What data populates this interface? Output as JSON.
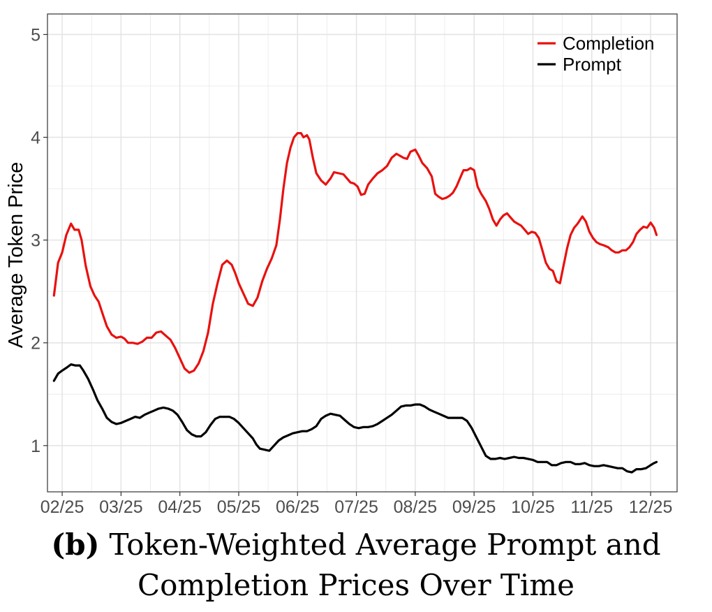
{
  "chart_data": {
    "type": "line",
    "title": "",
    "xlabel": "",
    "ylabel": "Average Token Price",
    "ylim": [
      0.55,
      5.2
    ],
    "xlim": [
      -0.25,
      10.45
    ],
    "yticks": [
      1,
      2,
      3,
      4,
      5
    ],
    "xticks": [
      {
        "label": "02/25",
        "pos": 0
      },
      {
        "label": "03/25",
        "pos": 1
      },
      {
        "label": "04/25",
        "pos": 2
      },
      {
        "label": "05/25",
        "pos": 3
      },
      {
        "label": "06/25",
        "pos": 4
      },
      {
        "label": "07/25",
        "pos": 5
      },
      {
        "label": "08/25",
        "pos": 6
      },
      {
        "label": "09/25",
        "pos": 7
      },
      {
        "label": "10/25",
        "pos": 8
      },
      {
        "label": "11/25",
        "pos": 9
      },
      {
        "label": "12/25",
        "pos": 10
      }
    ],
    "grid": true,
    "legend_position": "top-right",
    "series": [
      {
        "name": "Completion",
        "color": "#e8110f",
        "points": [
          [
            -0.14,
            2.46
          ],
          [
            -0.07,
            2.78
          ],
          [
            0.0,
            2.88
          ],
          [
            0.07,
            3.05
          ],
          [
            0.15,
            3.16
          ],
          [
            0.21,
            3.1
          ],
          [
            0.28,
            3.1
          ],
          [
            0.33,
            3.0
          ],
          [
            0.4,
            2.75
          ],
          [
            0.48,
            2.55
          ],
          [
            0.55,
            2.46
          ],
          [
            0.62,
            2.4
          ],
          [
            0.7,
            2.26
          ],
          [
            0.76,
            2.16
          ],
          [
            0.84,
            2.08
          ],
          [
            0.92,
            2.05
          ],
          [
            1.0,
            2.06
          ],
          [
            1.06,
            2.04
          ],
          [
            1.12,
            2.0
          ],
          [
            1.2,
            2.0
          ],
          [
            1.28,
            1.99
          ],
          [
            1.36,
            2.01
          ],
          [
            1.44,
            2.05
          ],
          [
            1.52,
            2.05
          ],
          [
            1.6,
            2.1
          ],
          [
            1.68,
            2.11
          ],
          [
            1.76,
            2.07
          ],
          [
            1.84,
            2.03
          ],
          [
            1.92,
            1.95
          ],
          [
            2.0,
            1.85
          ],
          [
            2.08,
            1.75
          ],
          [
            2.16,
            1.71
          ],
          [
            2.24,
            1.73
          ],
          [
            2.32,
            1.8
          ],
          [
            2.4,
            1.92
          ],
          [
            2.48,
            2.1
          ],
          [
            2.56,
            2.38
          ],
          [
            2.64,
            2.58
          ],
          [
            2.72,
            2.76
          ],
          [
            2.8,
            2.8
          ],
          [
            2.88,
            2.76
          ],
          [
            2.94,
            2.68
          ],
          [
            3.0,
            2.58
          ],
          [
            3.08,
            2.48
          ],
          [
            3.16,
            2.38
          ],
          [
            3.24,
            2.36
          ],
          [
            3.32,
            2.44
          ],
          [
            3.4,
            2.6
          ],
          [
            3.48,
            2.72
          ],
          [
            3.56,
            2.82
          ],
          [
            3.64,
            2.95
          ],
          [
            3.7,
            3.2
          ],
          [
            3.76,
            3.5
          ],
          [
            3.82,
            3.75
          ],
          [
            3.88,
            3.9
          ],
          [
            3.94,
            4.0
          ],
          [
            4.0,
            4.04
          ],
          [
            4.06,
            4.04
          ],
          [
            4.1,
            4.0
          ],
          [
            4.16,
            4.02
          ],
          [
            4.2,
            3.98
          ],
          [
            4.26,
            3.8
          ],
          [
            4.32,
            3.65
          ],
          [
            4.4,
            3.58
          ],
          [
            4.48,
            3.54
          ],
          [
            4.56,
            3.6
          ],
          [
            4.62,
            3.66
          ],
          [
            4.7,
            3.65
          ],
          [
            4.78,
            3.64
          ],
          [
            4.84,
            3.6
          ],
          [
            4.9,
            3.56
          ],
          [
            4.96,
            3.55
          ],
          [
            5.02,
            3.52
          ],
          [
            5.08,
            3.44
          ],
          [
            5.14,
            3.45
          ],
          [
            5.2,
            3.54
          ],
          [
            5.28,
            3.6
          ],
          [
            5.36,
            3.65
          ],
          [
            5.44,
            3.68
          ],
          [
            5.52,
            3.72
          ],
          [
            5.6,
            3.8
          ],
          [
            5.68,
            3.84
          ],
          [
            5.74,
            3.82
          ],
          [
            5.8,
            3.8
          ],
          [
            5.86,
            3.79
          ],
          [
            5.92,
            3.86
          ],
          [
            6.0,
            3.88
          ],
          [
            6.06,
            3.82
          ],
          [
            6.12,
            3.75
          ],
          [
            6.2,
            3.7
          ],
          [
            6.28,
            3.62
          ],
          [
            6.34,
            3.45
          ],
          [
            6.4,
            3.42
          ],
          [
            6.46,
            3.4
          ],
          [
            6.52,
            3.41
          ],
          [
            6.58,
            3.43
          ],
          [
            6.64,
            3.46
          ],
          [
            6.7,
            3.52
          ],
          [
            6.76,
            3.6
          ],
          [
            6.82,
            3.68
          ],
          [
            6.88,
            3.68
          ],
          [
            6.94,
            3.7
          ],
          [
            7.0,
            3.68
          ],
          [
            7.06,
            3.52
          ],
          [
            7.12,
            3.45
          ],
          [
            7.2,
            3.38
          ],
          [
            7.26,
            3.3
          ],
          [
            7.32,
            3.2
          ],
          [
            7.38,
            3.14
          ],
          [
            7.44,
            3.2
          ],
          [
            7.5,
            3.24
          ],
          [
            7.56,
            3.26
          ],
          [
            7.62,
            3.22
          ],
          [
            7.68,
            3.18
          ],
          [
            7.74,
            3.16
          ],
          [
            7.8,
            3.14
          ],
          [
            7.86,
            3.1
          ],
          [
            7.92,
            3.06
          ],
          [
            7.98,
            3.08
          ],
          [
            8.04,
            3.07
          ],
          [
            8.1,
            3.02
          ],
          [
            8.16,
            2.9
          ],
          [
            8.22,
            2.78
          ],
          [
            8.28,
            2.72
          ],
          [
            8.34,
            2.7
          ],
          [
            8.4,
            2.6
          ],
          [
            8.46,
            2.58
          ],
          [
            8.52,
            2.75
          ],
          [
            8.58,
            2.92
          ],
          [
            8.64,
            3.05
          ],
          [
            8.7,
            3.12
          ],
          [
            8.76,
            3.16
          ],
          [
            8.84,
            3.23
          ],
          [
            8.9,
            3.18
          ],
          [
            8.96,
            3.08
          ],
          [
            9.02,
            3.02
          ],
          [
            9.08,
            2.98
          ],
          [
            9.14,
            2.96
          ],
          [
            9.2,
            2.95
          ],
          [
            9.28,
            2.93
          ],
          [
            9.34,
            2.9
          ],
          [
            9.4,
            2.88
          ],
          [
            9.46,
            2.88
          ],
          [
            9.52,
            2.9
          ],
          [
            9.58,
            2.9
          ],
          [
            9.64,
            2.93
          ],
          [
            9.7,
            2.98
          ],
          [
            9.76,
            3.06
          ],
          [
            9.82,
            3.1
          ],
          [
            9.88,
            3.13
          ],
          [
            9.94,
            3.12
          ],
          [
            10.0,
            3.17
          ],
          [
            10.06,
            3.12
          ],
          [
            10.1,
            3.05
          ]
        ]
      },
      {
        "name": "Prompt",
        "color": "#000000",
        "points": [
          [
            -0.14,
            1.63
          ],
          [
            -0.07,
            1.7
          ],
          [
            0.0,
            1.73
          ],
          [
            0.08,
            1.76
          ],
          [
            0.15,
            1.79
          ],
          [
            0.22,
            1.78
          ],
          [
            0.3,
            1.78
          ],
          [
            0.36,
            1.73
          ],
          [
            0.44,
            1.65
          ],
          [
            0.52,
            1.55
          ],
          [
            0.6,
            1.44
          ],
          [
            0.68,
            1.36
          ],
          [
            0.76,
            1.27
          ],
          [
            0.84,
            1.23
          ],
          [
            0.92,
            1.21
          ],
          [
            1.0,
            1.22
          ],
          [
            1.08,
            1.24
          ],
          [
            1.16,
            1.26
          ],
          [
            1.24,
            1.28
          ],
          [
            1.32,
            1.27
          ],
          [
            1.4,
            1.3
          ],
          [
            1.48,
            1.32
          ],
          [
            1.56,
            1.34
          ],
          [
            1.64,
            1.36
          ],
          [
            1.72,
            1.37
          ],
          [
            1.8,
            1.36
          ],
          [
            1.88,
            1.34
          ],
          [
            1.96,
            1.3
          ],
          [
            2.04,
            1.23
          ],
          [
            2.12,
            1.15
          ],
          [
            2.2,
            1.11
          ],
          [
            2.28,
            1.09
          ],
          [
            2.36,
            1.09
          ],
          [
            2.44,
            1.13
          ],
          [
            2.52,
            1.2
          ],
          [
            2.6,
            1.26
          ],
          [
            2.68,
            1.28
          ],
          [
            2.76,
            1.28
          ],
          [
            2.84,
            1.28
          ],
          [
            2.92,
            1.26
          ],
          [
            3.0,
            1.22
          ],
          [
            3.08,
            1.17
          ],
          [
            3.16,
            1.12
          ],
          [
            3.24,
            1.07
          ],
          [
            3.3,
            1.01
          ],
          [
            3.36,
            0.97
          ],
          [
            3.44,
            0.96
          ],
          [
            3.52,
            0.95
          ],
          [
            3.6,
            1.0
          ],
          [
            3.68,
            1.05
          ],
          [
            3.76,
            1.08
          ],
          [
            3.84,
            1.1
          ],
          [
            3.92,
            1.12
          ],
          [
            4.0,
            1.13
          ],
          [
            4.08,
            1.14
          ],
          [
            4.16,
            1.14
          ],
          [
            4.24,
            1.16
          ],
          [
            4.32,
            1.19
          ],
          [
            4.4,
            1.26
          ],
          [
            4.48,
            1.29
          ],
          [
            4.56,
            1.31
          ],
          [
            4.64,
            1.3
          ],
          [
            4.72,
            1.29
          ],
          [
            4.8,
            1.25
          ],
          [
            4.88,
            1.21
          ],
          [
            4.96,
            1.18
          ],
          [
            5.04,
            1.17
          ],
          [
            5.12,
            1.18
          ],
          [
            5.2,
            1.18
          ],
          [
            5.28,
            1.19
          ],
          [
            5.36,
            1.21
          ],
          [
            5.44,
            1.24
          ],
          [
            5.52,
            1.27
          ],
          [
            5.6,
            1.3
          ],
          [
            5.68,
            1.34
          ],
          [
            5.76,
            1.38
          ],
          [
            5.84,
            1.39
          ],
          [
            5.92,
            1.39
          ],
          [
            6.0,
            1.4
          ],
          [
            6.08,
            1.4
          ],
          [
            6.16,
            1.38
          ],
          [
            6.24,
            1.35
          ],
          [
            6.32,
            1.33
          ],
          [
            6.4,
            1.31
          ],
          [
            6.48,
            1.29
          ],
          [
            6.56,
            1.27
          ],
          [
            6.64,
            1.27
          ],
          [
            6.72,
            1.27
          ],
          [
            6.8,
            1.27
          ],
          [
            6.88,
            1.24
          ],
          [
            6.96,
            1.17
          ],
          [
            7.04,
            1.08
          ],
          [
            7.12,
            0.99
          ],
          [
            7.2,
            0.9
          ],
          [
            7.28,
            0.87
          ],
          [
            7.36,
            0.87
          ],
          [
            7.44,
            0.88
          ],
          [
            7.52,
            0.87
          ],
          [
            7.6,
            0.88
          ],
          [
            7.68,
            0.89
          ],
          [
            7.76,
            0.88
          ],
          [
            7.84,
            0.88
          ],
          [
            7.92,
            0.87
          ],
          [
            8.0,
            0.86
          ],
          [
            8.08,
            0.84
          ],
          [
            8.16,
            0.84
          ],
          [
            8.24,
            0.84
          ],
          [
            8.32,
            0.81
          ],
          [
            8.4,
            0.81
          ],
          [
            8.48,
            0.83
          ],
          [
            8.56,
            0.84
          ],
          [
            8.64,
            0.84
          ],
          [
            8.72,
            0.82
          ],
          [
            8.8,
            0.82
          ],
          [
            8.88,
            0.83
          ],
          [
            8.96,
            0.81
          ],
          [
            9.04,
            0.8
          ],
          [
            9.12,
            0.8
          ],
          [
            9.2,
            0.81
          ],
          [
            9.28,
            0.8
          ],
          [
            9.36,
            0.79
          ],
          [
            9.44,
            0.78
          ],
          [
            9.52,
            0.78
          ],
          [
            9.6,
            0.75
          ],
          [
            9.68,
            0.74
          ],
          [
            9.76,
            0.77
          ],
          [
            9.84,
            0.77
          ],
          [
            9.92,
            0.78
          ],
          [
            10.0,
            0.81
          ],
          [
            10.06,
            0.83
          ],
          [
            10.1,
            0.84
          ]
        ]
      }
    ]
  },
  "caption": {
    "prefix": "(b)",
    "line1": "Token-Weighted Average Prompt and",
    "line2": "Completion Prices Over Time"
  }
}
